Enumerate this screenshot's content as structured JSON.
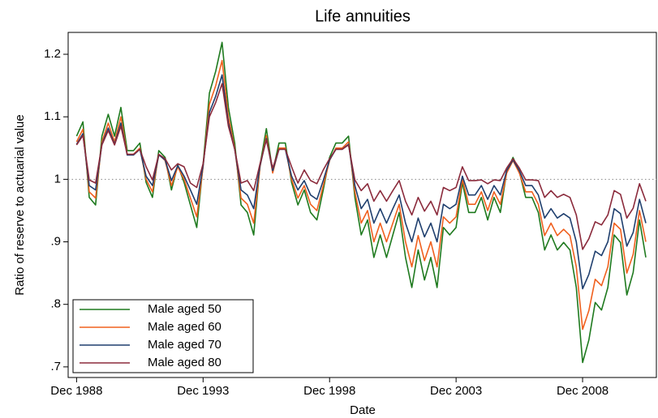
{
  "chart_data": {
    "type": "line",
    "title": "Life annuities",
    "x_label": "Date",
    "y_label": "Ratio of reserve to actuarial value",
    "x": [
      "1988-12",
      "1989-03",
      "1989-06",
      "1989-09",
      "1989-12",
      "1990-03",
      "1990-06",
      "1990-09",
      "1990-12",
      "1991-03",
      "1991-06",
      "1991-09",
      "1991-12",
      "1992-03",
      "1992-06",
      "1992-09",
      "1992-12",
      "1993-03",
      "1993-06",
      "1993-09",
      "1993-12",
      "1994-03",
      "1994-06",
      "1994-09",
      "1994-12",
      "1995-03",
      "1995-06",
      "1995-09",
      "1995-12",
      "1996-03",
      "1996-06",
      "1996-09",
      "1996-12",
      "1997-03",
      "1997-06",
      "1997-09",
      "1997-12",
      "1998-03",
      "1998-06",
      "1998-09",
      "1998-12",
      "1999-03",
      "1999-06",
      "1999-09",
      "1999-12",
      "2000-03",
      "2000-06",
      "2000-09",
      "2000-12",
      "2001-03",
      "2001-06",
      "2001-09",
      "2001-12",
      "2002-03",
      "2002-06",
      "2002-09",
      "2002-12",
      "2003-03",
      "2003-06",
      "2003-09",
      "2003-12",
      "2004-03",
      "2004-06",
      "2004-09",
      "2004-12",
      "2005-03",
      "2005-06",
      "2005-09",
      "2005-12",
      "2006-03",
      "2006-06",
      "2006-09",
      "2006-12",
      "2007-03",
      "2007-06",
      "2007-09",
      "2007-12",
      "2008-03",
      "2008-06",
      "2008-09",
      "2008-12",
      "2009-03",
      "2009-06",
      "2009-09",
      "2009-12",
      "2010-03",
      "2010-06",
      "2010-09",
      "2010-12",
      "2011-03",
      "2011-06"
    ],
    "series": [
      {
        "name": "Male aged 50",
        "color": "#1f7a1f",
        "values": [
          1.069,
          1.092,
          0.971,
          0.959,
          1.069,
          1.104,
          1.069,
          1.115,
          1.046,
          1.046,
          1.058,
          0.995,
          0.971,
          1.046,
          1.035,
          0.983,
          1.023,
          0.995,
          0.959,
          0.923,
          1.023,
          1.138,
          1.173,
          1.219,
          1.115,
          1.058,
          0.959,
          0.947,
          0.911,
          1.023,
          1.081,
          1.012,
          1.058,
          1.058,
          0.995,
          0.959,
          0.983,
          0.947,
          0.935,
          0.983,
          1.035,
          1.058,
          1.058,
          1.069,
          0.971,
          0.911,
          0.935,
          0.875,
          0.911,
          0.875,
          0.911,
          0.947,
          0.875,
          0.827,
          0.887,
          0.839,
          0.875,
          0.827,
          0.923,
          0.911,
          0.923,
          0.995,
          0.947,
          0.947,
          0.971,
          0.935,
          0.971,
          0.947,
          1.012,
          1.035,
          1.012,
          0.971,
          0.971,
          0.947,
          0.887,
          0.911,
          0.887,
          0.899,
          0.887,
          0.827,
          0.707,
          0.743,
          0.803,
          0.791,
          0.827,
          0.911,
          0.899,
          0.815,
          0.851,
          0.935,
          0.875
        ]
      },
      {
        "name": "Male aged 60",
        "color": "#f0601e",
        "values": [
          1.06,
          1.08,
          0.98,
          0.97,
          1.06,
          1.09,
          1.06,
          1.1,
          1.04,
          1.04,
          1.05,
          1.0,
          0.98,
          1.04,
          1.03,
          0.99,
          1.02,
          1.0,
          0.97,
          0.94,
          1.02,
          1.12,
          1.15,
          1.19,
          1.1,
          1.05,
          0.97,
          0.96,
          0.93,
          1.02,
          1.07,
          1.01,
          1.05,
          1.05,
          1.0,
          0.97,
          0.99,
          0.96,
          0.95,
          0.99,
          1.03,
          1.05,
          1.05,
          1.06,
          0.98,
          0.93,
          0.95,
          0.9,
          0.93,
          0.9,
          0.93,
          0.96,
          0.9,
          0.86,
          0.91,
          0.87,
          0.9,
          0.86,
          0.94,
          0.93,
          0.94,
          1.0,
          0.96,
          0.96,
          0.98,
          0.95,
          0.98,
          0.96,
          1.01,
          1.03,
          1.01,
          0.98,
          0.98,
          0.96,
          0.91,
          0.93,
          0.91,
          0.92,
          0.91,
          0.86,
          0.76,
          0.79,
          0.84,
          0.83,
          0.86,
          0.93,
          0.92,
          0.85,
          0.88,
          0.95,
          0.9
        ]
      },
      {
        "name": "Male aged 70",
        "color": "#1f3f6e",
        "values": [
          1.056,
          1.073,
          0.99,
          0.983,
          1.056,
          1.082,
          1.056,
          1.09,
          1.039,
          1.039,
          1.048,
          1.005,
          0.99,
          1.039,
          1.031,
          0.998,
          1.022,
          1.005,
          0.983,
          0.96,
          1.022,
          1.107,
          1.133,
          1.167,
          1.09,
          1.048,
          0.983,
          0.975,
          0.953,
          1.022,
          1.065,
          1.014,
          1.048,
          1.048,
          1.005,
          0.983,
          0.998,
          0.975,
          0.968,
          0.998,
          1.031,
          1.048,
          1.048,
          1.056,
          0.99,
          0.953,
          0.968,
          0.93,
          0.953,
          0.93,
          0.953,
          0.975,
          0.93,
          0.9,
          0.938,
          0.908,
          0.93,
          0.9,
          0.96,
          0.953,
          0.96,
          1.005,
          0.975,
          0.975,
          0.99,
          0.968,
          0.99,
          0.975,
          1.014,
          1.031,
          1.014,
          0.99,
          0.99,
          0.975,
          0.938,
          0.953,
          0.938,
          0.945,
          0.938,
          0.9,
          0.825,
          0.848,
          0.885,
          0.878,
          0.9,
          0.953,
          0.945,
          0.893,
          0.915,
          0.968,
          0.93
        ]
      },
      {
        "name": "Male aged 80",
        "color": "#8b2b3c",
        "values": [
          1.055,
          1.07,
          0.999,
          0.994,
          1.055,
          1.078,
          1.055,
          1.085,
          1.04,
          1.04,
          1.048,
          1.02,
          0.999,
          1.04,
          1.033,
          1.015,
          1.025,
          1.02,
          0.994,
          0.987,
          1.025,
          1.1,
          1.123,
          1.153,
          1.085,
          1.048,
          0.994,
          0.998,
          0.982,
          1.025,
          1.063,
          1.018,
          1.048,
          1.048,
          1.02,
          0.994,
          1.015,
          0.998,
          0.993,
          1.015,
          1.033,
          1.048,
          1.048,
          1.055,
          0.999,
          0.982,
          0.993,
          0.965,
          0.982,
          0.965,
          0.982,
          0.998,
          0.965,
          0.943,
          0.971,
          0.949,
          0.965,
          0.943,
          0.987,
          0.982,
          0.987,
          1.02,
          0.998,
          0.998,
          0.999,
          0.993,
          0.999,
          0.998,
          1.018,
          1.033,
          1.018,
          0.999,
          0.999,
          0.998,
          0.971,
          0.982,
          0.971,
          0.976,
          0.971,
          0.943,
          0.888,
          0.905,
          0.932,
          0.927,
          0.943,
          0.982,
          0.976,
          0.938,
          0.954,
          0.993,
          0.965
        ]
      }
    ],
    "xlim": [
      "1988-08",
      "2011-11"
    ],
    "xticks": [
      {
        "value": "1988-12",
        "label": "Dec 1988"
      },
      {
        "value": "1993-12",
        "label": "Dec 1993"
      },
      {
        "value": "1998-12",
        "label": "Dec 1998"
      },
      {
        "value": "2003-12",
        "label": "Dec 2003"
      },
      {
        "value": "2008-12",
        "label": "Dec 2008"
      }
    ],
    "ylim": [
      0.683,
      1.235
    ],
    "yticks": [
      {
        "value": 0.7,
        "label": ".7"
      },
      {
        "value": 0.8,
        "label": ".8"
      },
      {
        "value": 0.9,
        "label": ".9"
      },
      1,
      1.1,
      1.2
    ],
    "reference_line": 1,
    "grid": false,
    "legend": "bottom-left"
  }
}
